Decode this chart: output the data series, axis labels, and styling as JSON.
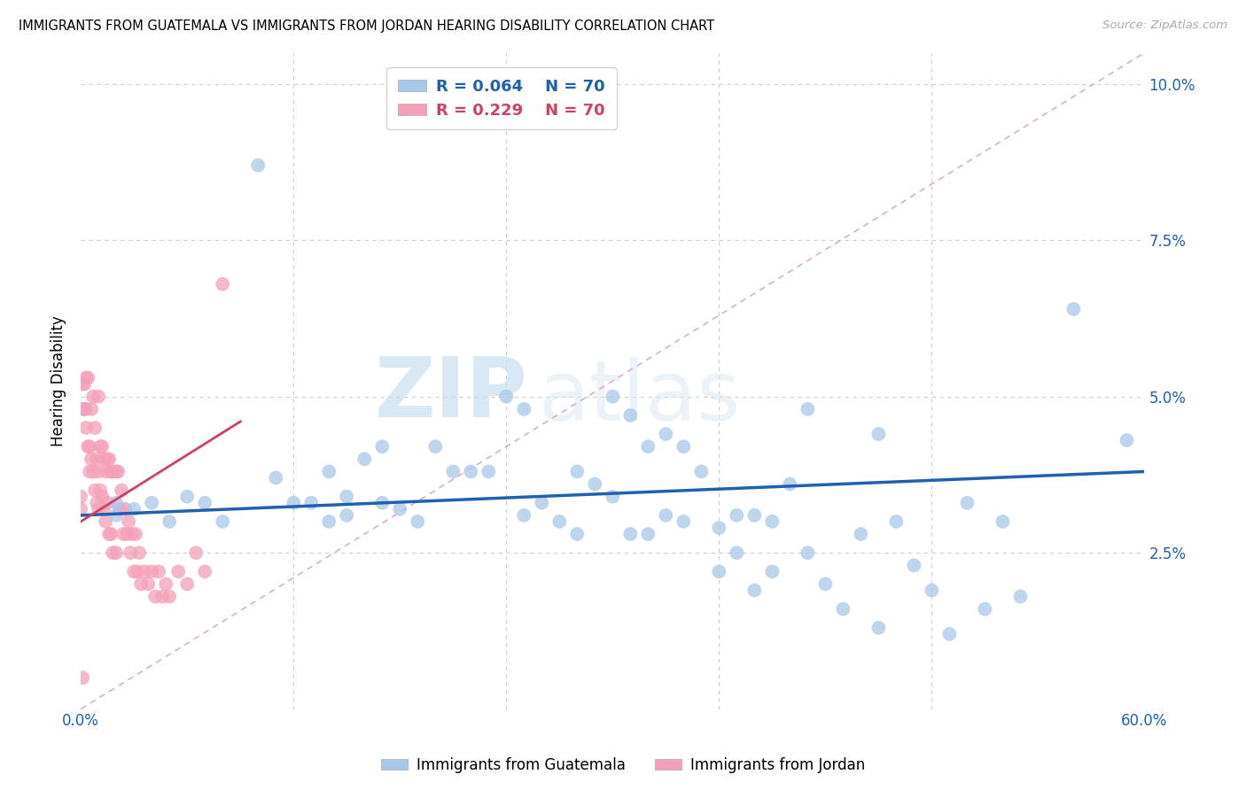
{
  "title": "IMMIGRANTS FROM GUATEMALA VS IMMIGRANTS FROM JORDAN HEARING DISABILITY CORRELATION CHART",
  "source": "Source: ZipAtlas.com",
  "ylabel": "Hearing Disability",
  "legend_blue": {
    "R": "0.064",
    "N": "70",
    "label": "Immigrants from Guatemala"
  },
  "legend_pink": {
    "R": "0.229",
    "N": "70",
    "label": "Immigrants from Jordan"
  },
  "blue_color": "#a8c8e8",
  "pink_color": "#f4a0b8",
  "blue_line_color": "#2060b0",
  "pink_line_color": "#d04060",
  "diag_line_color": "#e0a0b0",
  "watermark_zip": "ZIP",
  "watermark_atlas": "atlas",
  "xlim": [
    0.0,
    0.6
  ],
  "ylim": [
    0.0,
    0.105
  ],
  "blue_scatter_x": [
    0.02,
    0.02,
    0.03,
    0.04,
    0.05,
    0.06,
    0.07,
    0.08,
    0.1,
    0.11,
    0.12,
    0.13,
    0.14,
    0.14,
    0.15,
    0.15,
    0.16,
    0.17,
    0.17,
    0.18,
    0.19,
    0.2,
    0.21,
    0.22,
    0.23,
    0.24,
    0.25,
    0.25,
    0.26,
    0.27,
    0.28,
    0.28,
    0.29,
    0.3,
    0.3,
    0.31,
    0.31,
    0.32,
    0.32,
    0.33,
    0.33,
    0.34,
    0.34,
    0.35,
    0.36,
    0.36,
    0.37,
    0.37,
    0.38,
    0.38,
    0.39,
    0.39,
    0.4,
    0.41,
    0.41,
    0.42,
    0.43,
    0.44,
    0.45,
    0.45,
    0.46,
    0.47,
    0.48,
    0.49,
    0.5,
    0.51,
    0.52,
    0.53,
    0.56,
    0.59
  ],
  "blue_scatter_y": [
    0.033,
    0.031,
    0.032,
    0.033,
    0.03,
    0.034,
    0.033,
    0.03,
    0.087,
    0.037,
    0.033,
    0.033,
    0.038,
    0.03,
    0.034,
    0.031,
    0.04,
    0.042,
    0.033,
    0.032,
    0.03,
    0.042,
    0.038,
    0.038,
    0.038,
    0.05,
    0.048,
    0.031,
    0.033,
    0.03,
    0.038,
    0.028,
    0.036,
    0.034,
    0.05,
    0.028,
    0.047,
    0.042,
    0.028,
    0.031,
    0.044,
    0.03,
    0.042,
    0.038,
    0.022,
    0.029,
    0.031,
    0.025,
    0.019,
    0.031,
    0.022,
    0.03,
    0.036,
    0.025,
    0.048,
    0.02,
    0.016,
    0.028,
    0.044,
    0.013,
    0.03,
    0.023,
    0.019,
    0.012,
    0.033,
    0.016,
    0.03,
    0.018,
    0.064,
    0.043
  ],
  "pink_scatter_x": [
    0.0,
    0.0,
    0.001,
    0.001,
    0.002,
    0.002,
    0.003,
    0.003,
    0.003,
    0.004,
    0.004,
    0.005,
    0.005,
    0.006,
    0.006,
    0.007,
    0.007,
    0.008,
    0.008,
    0.009,
    0.009,
    0.01,
    0.01,
    0.01,
    0.011,
    0.011,
    0.012,
    0.012,
    0.013,
    0.013,
    0.014,
    0.014,
    0.015,
    0.015,
    0.016,
    0.016,
    0.017,
    0.017,
    0.018,
    0.018,
    0.02,
    0.02,
    0.021,
    0.022,
    0.023,
    0.024,
    0.025,
    0.026,
    0.027,
    0.028,
    0.029,
    0.03,
    0.031,
    0.032,
    0.033,
    0.034,
    0.036,
    0.038,
    0.04,
    0.042,
    0.044,
    0.046,
    0.048,
    0.05,
    0.055,
    0.06,
    0.065,
    0.07,
    0.08,
    0.001
  ],
  "pink_scatter_y": [
    0.034,
    0.032,
    0.052,
    0.048,
    0.052,
    0.048,
    0.053,
    0.048,
    0.045,
    0.053,
    0.042,
    0.042,
    0.038,
    0.048,
    0.04,
    0.05,
    0.038,
    0.045,
    0.035,
    0.04,
    0.033,
    0.05,
    0.038,
    0.032,
    0.042,
    0.035,
    0.042,
    0.034,
    0.04,
    0.032,
    0.038,
    0.03,
    0.04,
    0.033,
    0.04,
    0.028,
    0.038,
    0.028,
    0.038,
    0.025,
    0.038,
    0.025,
    0.038,
    0.032,
    0.035,
    0.028,
    0.032,
    0.028,
    0.03,
    0.025,
    0.028,
    0.022,
    0.028,
    0.022,
    0.025,
    0.02,
    0.022,
    0.02,
    0.022,
    0.018,
    0.022,
    0.018,
    0.02,
    0.018,
    0.022,
    0.02,
    0.025,
    0.022,
    0.068,
    0.005
  ],
  "blue_trend_x": [
    0.0,
    0.6
  ],
  "blue_trend_y": [
    0.031,
    0.038
  ],
  "pink_trend_x": [
    0.0,
    0.09
  ],
  "pink_trend_y": [
    0.03,
    0.046
  ]
}
